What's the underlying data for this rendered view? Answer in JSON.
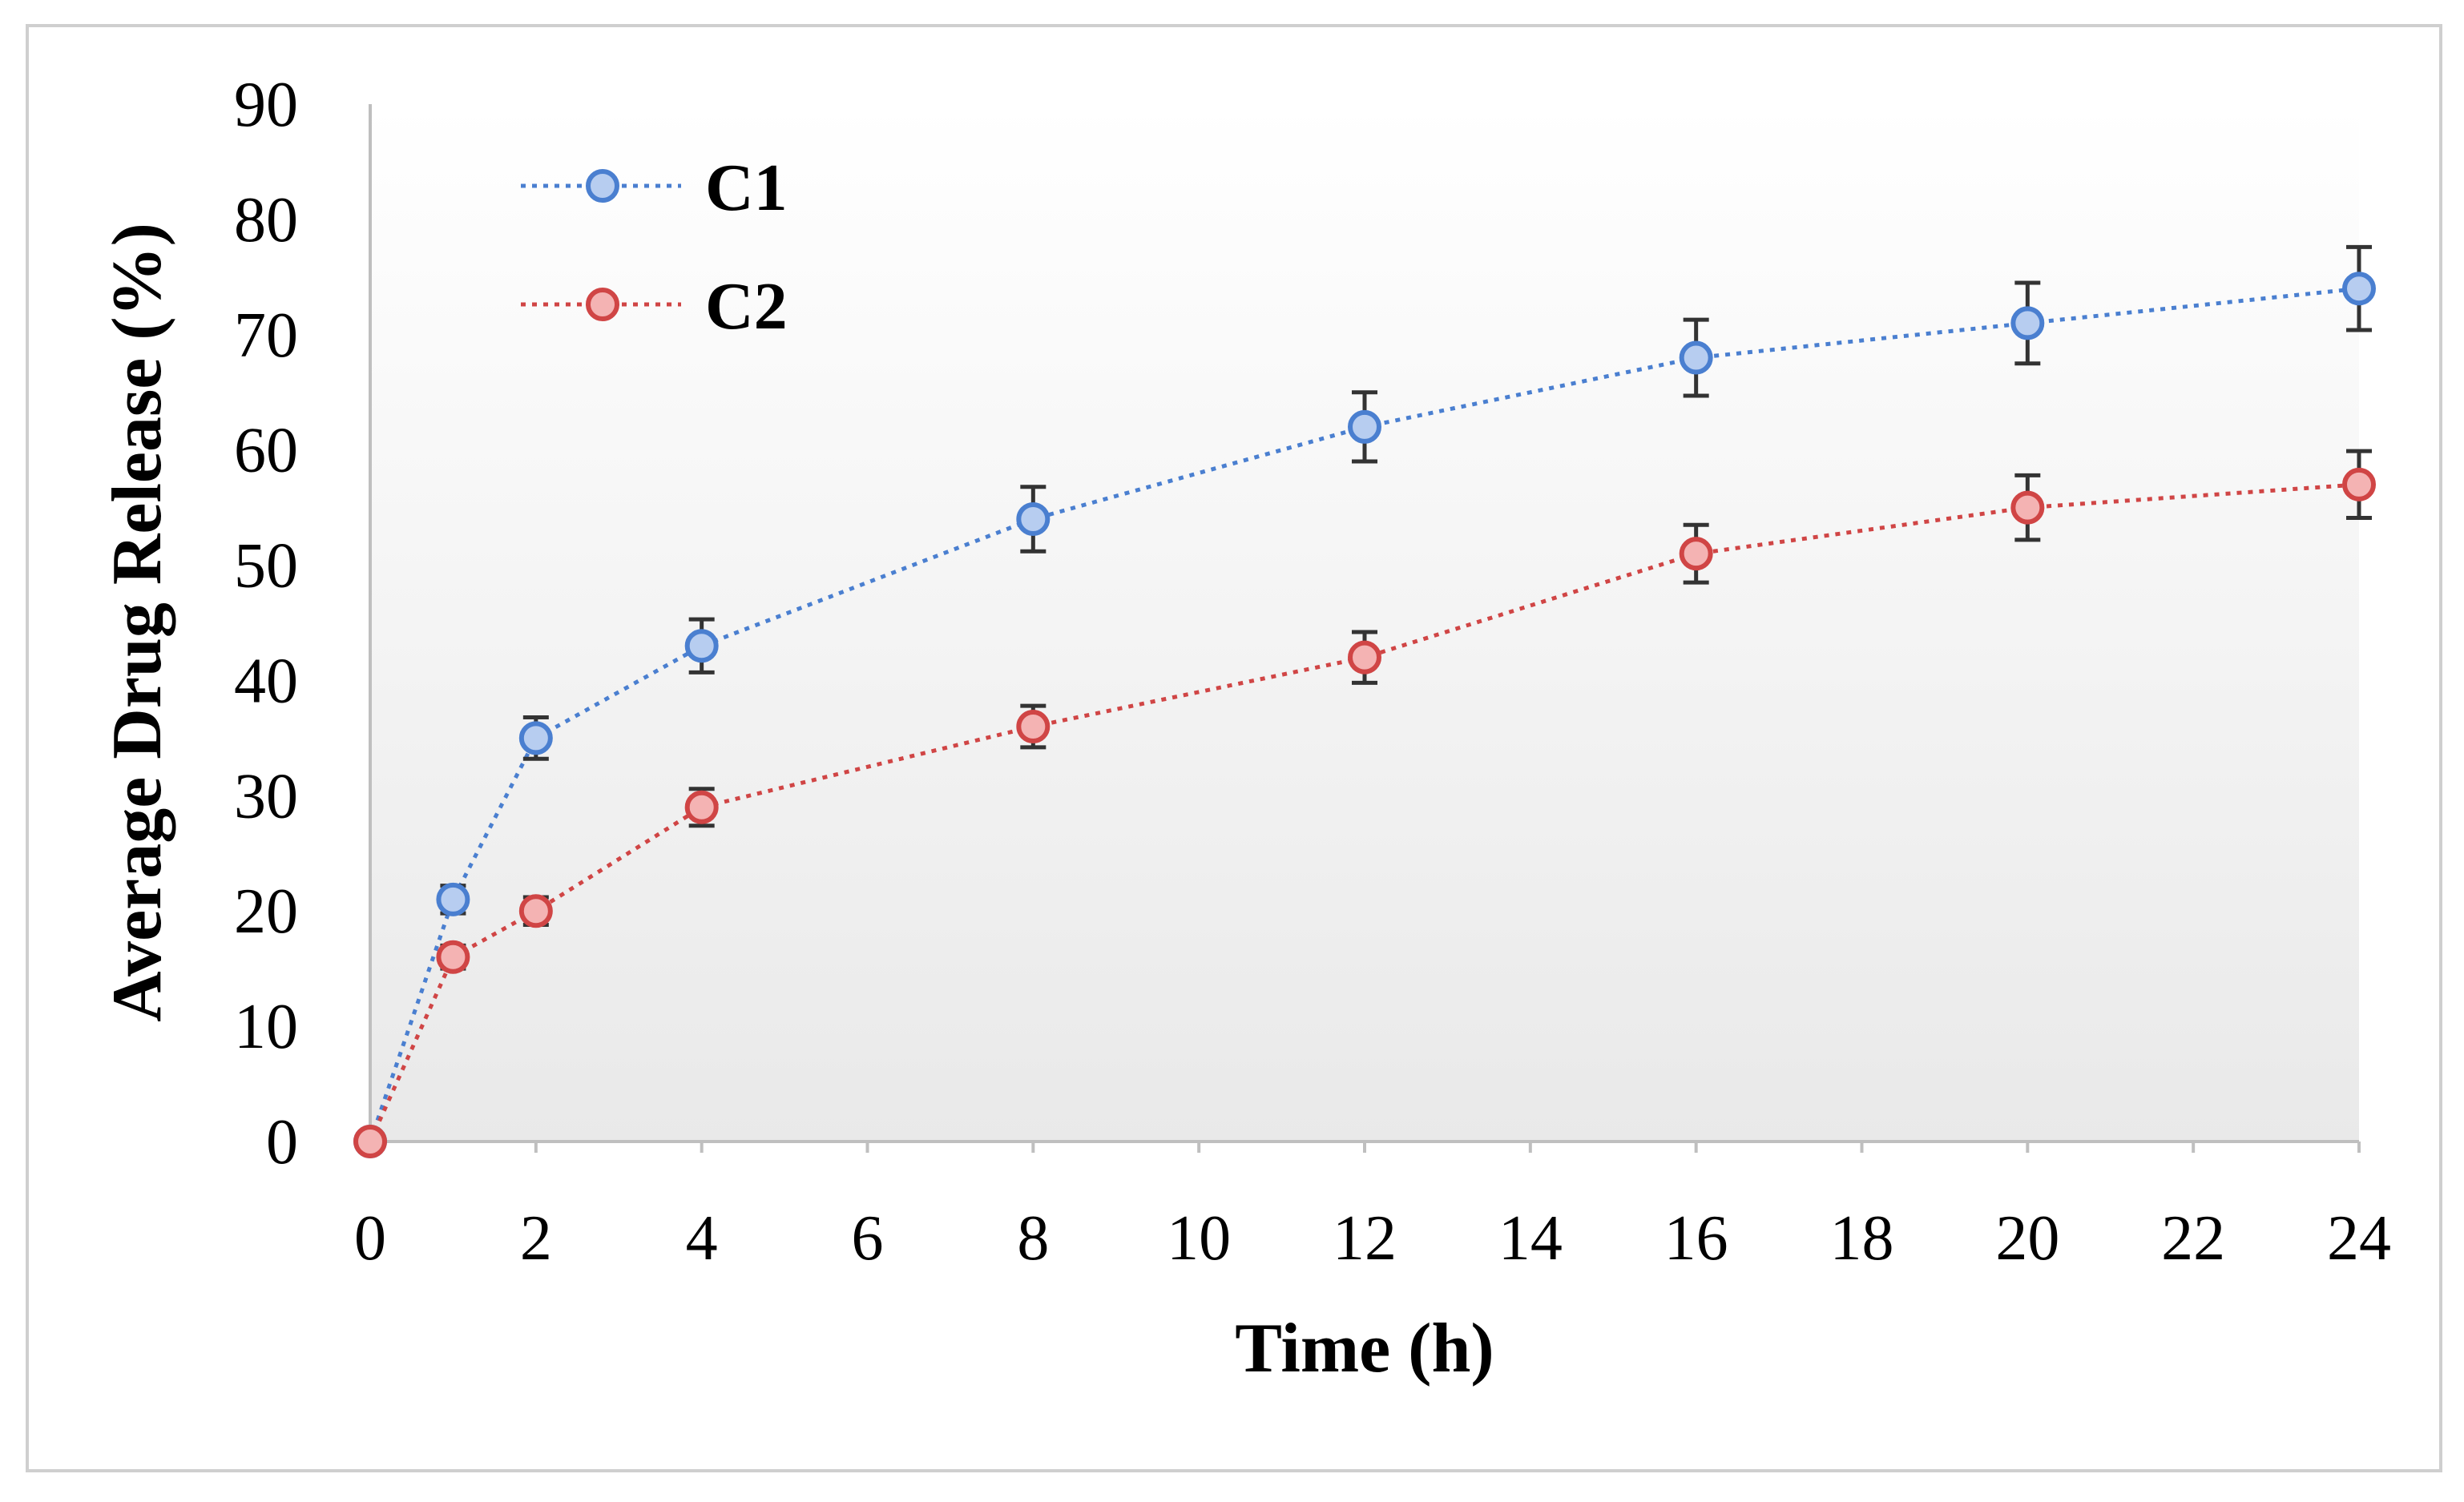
{
  "chart_data": {
    "type": "line",
    "title": "",
    "xlabel": "Time (h)",
    "ylabel": "Average Drug Release (%)",
    "xlim": [
      0,
      24
    ],
    "ylim": [
      0,
      90
    ],
    "x_ticks": [
      0,
      2,
      4,
      6,
      8,
      10,
      12,
      14,
      16,
      18,
      20,
      22,
      24
    ],
    "y_ticks": [
      0,
      10,
      20,
      30,
      40,
      50,
      60,
      70,
      80,
      90
    ],
    "grid": false,
    "legend_position": "top-left",
    "series": [
      {
        "name": "C1",
        "color": "#4a7fd0",
        "marker_fill": "#b7cdf0",
        "x": [
          0,
          1,
          2,
          4,
          8,
          12,
          16,
          20,
          24
        ],
        "y": [
          0,
          21,
          35,
          43,
          54,
          62,
          68,
          71,
          74
        ],
        "error": [
          0,
          1.2,
          1.8,
          2.3,
          2.8,
          3.0,
          3.3,
          3.5,
          3.6
        ]
      },
      {
        "name": "C2",
        "color": "#d04545",
        "marker_fill": "#f4b3b3",
        "x": [
          0,
          1,
          2,
          4,
          8,
          12,
          16,
          20,
          24
        ],
        "y": [
          0,
          16,
          20,
          29,
          36,
          42,
          51,
          55,
          57
        ],
        "error": [
          0,
          1.0,
          1.2,
          1.6,
          1.8,
          2.2,
          2.5,
          2.8,
          2.9
        ]
      }
    ]
  }
}
